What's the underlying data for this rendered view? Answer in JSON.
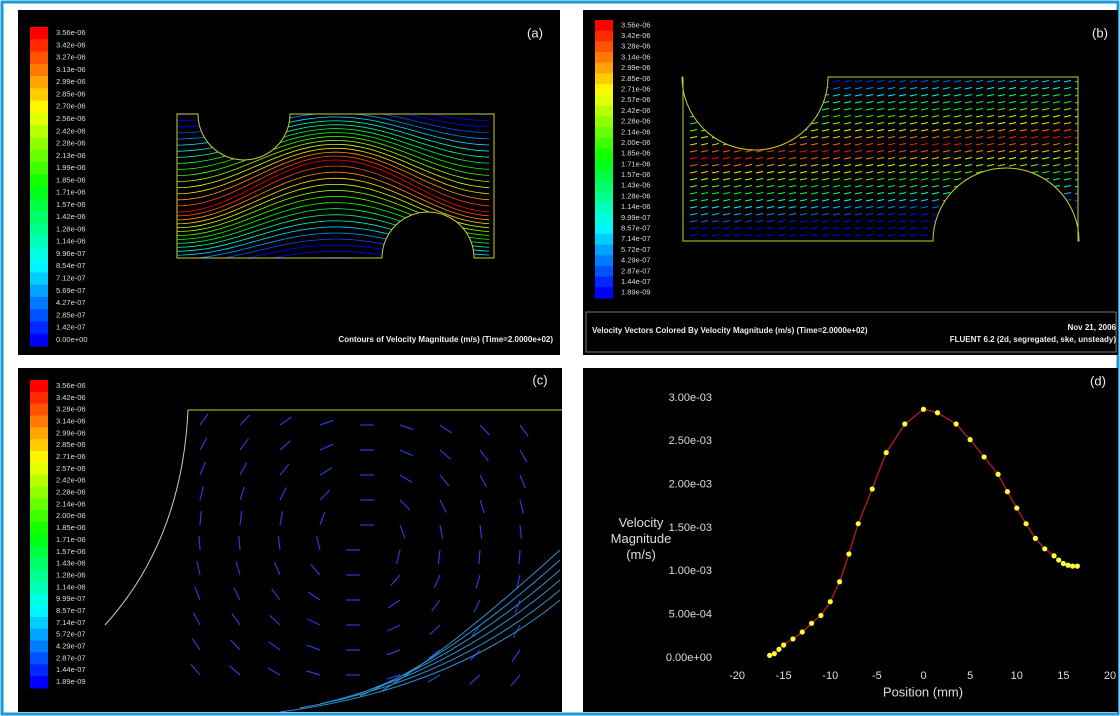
{
  "panels": [
    {
      "label": "(a)",
      "colorbar": [
        "3.56e-06",
        "3.42e-06",
        "3.27e-06",
        "3.13e-06",
        "2.99e-06",
        "2.85e-06",
        "2.70e-06",
        "2.56e-06",
        "2.42e-06",
        "2.28e-06",
        "2.13e-06",
        "1.99e-06",
        "1.85e-06",
        "1.71e-06",
        "1.57e-06",
        "1.42e-06",
        "1.28e-06",
        "1.14e-06",
        "9.96e-07",
        "8.54e-07",
        "7.12e-07",
        "5.69e-07",
        "4.27e-07",
        "2.85e-07",
        "1.42e-07",
        "0.00e+00"
      ],
      "caption": "Contours of Velocity Magnitude (m/s)  (Time=2.0000e+02)"
    },
    {
      "label": "(b)",
      "colorbar": [
        "3.56e-06",
        "3.42e-06",
        "3.28e-06",
        "3.14e-06",
        "2.99e-06",
        "2.85e-06",
        "2.71e-06",
        "2.57e-06",
        "2.42e-06",
        "2.28e-06",
        "2.14e-06",
        "2.00e-06",
        "1.85e-06",
        "1.71e-06",
        "1.57e-06",
        "1.43e-06",
        "1.28e-06",
        "1.14e-06",
        "9.99e-07",
        "8.57e-07",
        "7.14e-07",
        "5.72e-07",
        "4.29e-07",
        "2.87e-07",
        "1.44e-07",
        "1.89e-09"
      ],
      "caption": "Velocity Vectors Colored By Velocity Magnitude (m/s)  (Time=2.0000e+02)",
      "date": "Nov 21, 2006",
      "solver": "FLUENT 6.2 (2d, segregated, ske, unsteady)"
    },
    {
      "label": "(c)",
      "colorbar": [
        "3.56e-06",
        "3.42e-06",
        "3.28e-06",
        "3.14e-06",
        "2.99e-06",
        "2.85e-06",
        "2.71e-06",
        "2.57e-06",
        "2.42e-06",
        "2.28e-06",
        "2.14e-06",
        "2.00e-06",
        "1.85e-06",
        "1.71e-06",
        "1.57e-06",
        "1.43e-06",
        "1.28e-06",
        "1.14e-06",
        "9.99e-07",
        "8.57e-07",
        "7.14e-07",
        "5.72e-07",
        "4.29e-07",
        "2.87e-07",
        "1.44e-07",
        "1.89e-09"
      ]
    }
  ],
  "chart_data": {
    "type": "line",
    "label": "(d)",
    "xlabel": "Position (mm)",
    "ylabel": "Velocity Magnitude (m/s)",
    "x": [
      -16.5,
      -16,
      -15.5,
      -15,
      -14,
      -13,
      -12,
      -11,
      -10,
      -9,
      -8,
      -7,
      -5.5,
      -4,
      -2,
      0,
      1.5,
      3.5,
      5,
      6.5,
      8,
      9,
      10,
      11,
      12,
      13,
      14,
      14.5,
      15,
      15.5,
      16,
      16.5
    ],
    "series": [
      {
        "color": "#ffff33",
        "values": [
          3e-05,
          5e-05,
          0.0001,
          0.00015,
          0.00022,
          0.0003,
          0.0004,
          0.00049,
          0.00065,
          0.00088,
          0.0012,
          0.00155,
          0.00195,
          0.00237,
          0.0027,
          0.00287,
          0.00283,
          0.0027,
          0.00252,
          0.00232,
          0.00212,
          0.00192,
          0.00173,
          0.00155,
          0.00138,
          0.00126,
          0.00118,
          0.00113,
          0.00109,
          0.00107,
          0.00106,
          0.00106
        ]
      }
    ],
    "line_color": "#a01c1c",
    "xlim": [
      -20,
      20
    ],
    "xticks": [
      -20,
      -15,
      -10,
      -5,
      0,
      5,
      10,
      15,
      20
    ],
    "ylim": [
      0,
      0.003
    ],
    "yticks": [
      {
        "value": 0,
        "label": "0.00e+00"
      },
      {
        "value": 0.0005,
        "label": "5.00e-04"
      },
      {
        "value": 0.001,
        "label": "1.00e-03"
      },
      {
        "value": 0.0015,
        "label": "1.50e-03"
      },
      {
        "value": 0.002,
        "label": "2.00e-03"
      },
      {
        "value": 0.0025,
        "label": "2.50e-03"
      },
      {
        "value": 0.003,
        "label": "3.00e-03"
      }
    ]
  }
}
